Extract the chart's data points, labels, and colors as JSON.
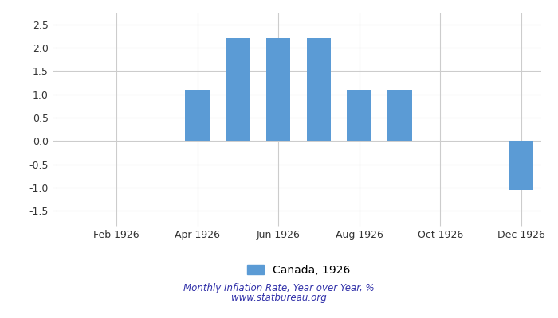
{
  "month_nums": [
    1,
    2,
    3,
    4,
    5,
    6,
    7,
    8,
    9,
    10,
    11,
    12
  ],
  "values": [
    null,
    null,
    null,
    1.09,
    2.2,
    2.2,
    2.2,
    1.09,
    1.09,
    null,
    null,
    -1.05
  ],
  "bar_color": "#5b9bd5",
  "ylim": [
    -1.75,
    2.75
  ],
  "yticks": [
    -1.5,
    -1.0,
    -0.5,
    0.0,
    0.5,
    1.0,
    1.5,
    2.0,
    2.5
  ],
  "xtick_labels": [
    "Feb 1926",
    "Apr 1926",
    "Jun 1926",
    "Aug 1926",
    "Oct 1926",
    "Dec 1926"
  ],
  "xtick_positions": [
    2,
    4,
    6,
    8,
    10,
    12
  ],
  "legend_label": "Canada, 1926",
  "footer_line1": "Monthly Inflation Rate, Year over Year, %",
  "footer_line2": "www.statbureau.org",
  "background_color": "#ffffff",
  "grid_color": "#cccccc",
  "bar_width": 0.6
}
